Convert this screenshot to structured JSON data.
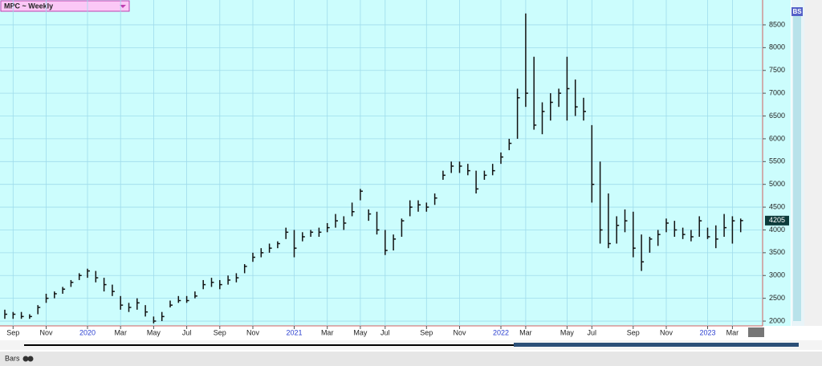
{
  "chart_data": {
    "type": "ohlc",
    "title": "MPC ~ Weekly",
    "categories": [
      null,
      "Sep",
      null,
      null,
      null,
      "Nov",
      null,
      null,
      null,
      null,
      "2020",
      null,
      null,
      null,
      "Mar",
      null,
      null,
      null,
      "May",
      null,
      null,
      null,
      "Jul",
      null,
      null,
      null,
      "Sep",
      null,
      null,
      null,
      "Nov",
      null,
      null,
      null,
      null,
      "2021",
      null,
      null,
      null,
      "Mar",
      null,
      null,
      null,
      "May",
      null,
      null,
      "Jul",
      null,
      null,
      null,
      null,
      "Sep",
      null,
      null,
      null,
      "Nov",
      null,
      null,
      null,
      null,
      "2022",
      null,
      null,
      "Mar",
      null,
      null,
      null,
      null,
      "May",
      null,
      null,
      "Jul",
      null,
      null,
      null,
      null,
      "Sep",
      null,
      null,
      null,
      "Nov",
      null,
      null,
      null,
      null,
      "2023",
      null,
      null,
      "Mar",
      null
    ],
    "series": [
      {
        "name": "high",
        "color": "#111111",
        "values": [
          2250,
          2200,
          2200,
          2150,
          2350,
          2600,
          2650,
          2750,
          2900,
          3050,
          3150,
          3100,
          2950,
          2800,
          2550,
          2400,
          2500,
          2350,
          2100,
          2200,
          2450,
          2550,
          2550,
          2650,
          2900,
          2950,
          2900,
          3000,
          3050,
          3250,
          3500,
          3600,
          3700,
          3750,
          4050,
          4000,
          3950,
          4000,
          4050,
          4150,
          4350,
          4300,
          4600,
          4900,
          4450,
          4400,
          4000,
          3900,
          4250,
          4650,
          4650,
          4600,
          4800,
          5300,
          5500,
          5500,
          5450,
          5300,
          5300,
          5450,
          5700,
          6000,
          7100,
          8750,
          7800,
          6800,
          7000,
          7100,
          7800,
          7300,
          6900,
          6300,
          5500,
          4800,
          4300,
          4450,
          4400,
          3900,
          3850,
          4000,
          4250,
          4200,
          4050,
          4000,
          4300,
          4050,
          4100,
          4350,
          4300,
          4250
        ]
      },
      {
        "name": "low",
        "color": "#111111",
        "values": [
          2050,
          2050,
          2050,
          2050,
          2150,
          2400,
          2500,
          2600,
          2750,
          2900,
          2950,
          2850,
          2650,
          2550,
          2250,
          2200,
          2250,
          2100,
          1950,
          2000,
          2300,
          2400,
          2400,
          2500,
          2700,
          2750,
          2700,
          2800,
          2850,
          3050,
          3300,
          3400,
          3500,
          3600,
          3800,
          3400,
          3750,
          3850,
          3850,
          3950,
          4050,
          4000,
          4300,
          4650,
          4200,
          3900,
          3450,
          3550,
          3850,
          4300,
          4400,
          4400,
          4550,
          5100,
          5250,
          5250,
          5200,
          4800,
          5100,
          5200,
          5450,
          5750,
          6000,
          6700,
          6200,
          6100,
          6400,
          6700,
          6400,
          6500,
          6400,
          4600,
          3700,
          3600,
          3700,
          3950,
          3400,
          3100,
          3500,
          3650,
          3950,
          3850,
          3800,
          3750,
          3850,
          3800,
          3600,
          3850,
          3700,
          3950
        ]
      },
      {
        "name": "close",
        "color": "#111111",
        "values": [
          2150,
          2150,
          2100,
          2100,
          2300,
          2500,
          2600,
          2700,
          2850,
          3000,
          3100,
          2950,
          2800,
          2650,
          2350,
          2300,
          2400,
          2200,
          2000,
          2100,
          2350,
          2450,
          2450,
          2550,
          2800,
          2850,
          2800,
          2900,
          2950,
          3200,
          3400,
          3500,
          3600,
          3700,
          3950,
          3600,
          3850,
          3950,
          3950,
          4050,
          4200,
          4150,
          4400,
          4850,
          4350,
          4000,
          3550,
          3800,
          4200,
          4500,
          4550,
          4500,
          4700,
          5200,
          5400,
          5400,
          5300,
          4900,
          5200,
          5300,
          5600,
          5900,
          6900,
          7000,
          6300,
          6600,
          6800,
          7000,
          7100,
          6700,
          6600,
          5000,
          4000,
          3700,
          4100,
          4200,
          3600,
          3300,
          3800,
          3900,
          4150,
          4000,
          3900,
          3850,
          4200,
          3850,
          3800,
          4050,
          4200,
          4205
        ]
      }
    ],
    "last_price": 4205,
    "ylim": [
      1895,
      9010
    ],
    "yticks": [
      2000,
      2500,
      3000,
      3500,
      4000,
      4500,
      5000,
      5500,
      6000,
      6500,
      7000,
      7500,
      8000,
      8500
    ],
    "grid": true,
    "footer_label": "Bars",
    "badge": "BS"
  }
}
